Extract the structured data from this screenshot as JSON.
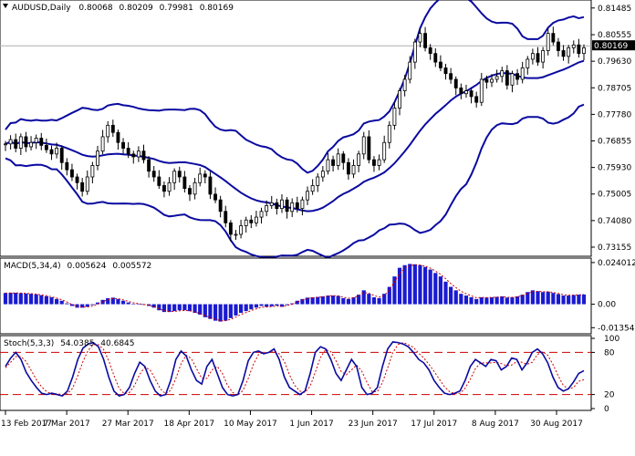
{
  "colors": {
    "background": "#ffffff",
    "frame": "#000000",
    "candle": "#000000",
    "bollinger": "#0a0aa0",
    "macd_hist": "#1a1ad0",
    "macd_signal": "#cc0000",
    "stoch_main": "#0a0aa0",
    "stoch_signal": "#cc0000",
    "level_line": "#cc0000",
    "current_price_line": "#b0b0b0"
  },
  "chart_data": [
    {
      "type": "candlestick",
      "symbol": "AUDUSD",
      "timeframe": "Daily",
      "ohlc_header": {
        "open": "0.80068",
        "high": "0.80209",
        "low": "0.79981",
        "close": "0.80169"
      },
      "title": "AUDUSD,Daily",
      "current_price": 0.80169,
      "current_price_label": "0.80169",
      "ylim": [
        0.729,
        0.817
      ],
      "y_tick_labels": [
        "0.81485",
        "0.80555",
        "0.79630",
        "0.78705",
        "0.77780",
        "0.76855",
        "0.75930",
        "0.75005",
        "0.74080",
        "0.73155"
      ],
      "x_tick_labels": [
        "13 Feb 2017",
        "7 Mar 2017",
        "27 Mar 2017",
        "18 Apr 2017",
        "10 May 2017",
        "1 Jun 2017",
        "23 Jun 2017",
        "17 Jul 2017",
        "8 Aug 2017",
        "30 Aug 2017"
      ],
      "overlay": "Bollinger Bands",
      "price_path": [
        0.7675,
        0.769,
        0.766,
        0.77,
        0.7665,
        0.768,
        0.7695,
        0.767,
        0.7655,
        0.764,
        0.766,
        0.761,
        0.7585,
        0.756,
        0.754,
        0.751,
        0.756,
        0.76,
        0.765,
        0.77,
        0.774,
        0.7715,
        0.768,
        0.766,
        0.764,
        0.763,
        0.765,
        0.762,
        0.758,
        0.756,
        0.753,
        0.751,
        0.754,
        0.758,
        0.756,
        0.752,
        0.75,
        0.754,
        0.757,
        0.756,
        0.75,
        0.748,
        0.744,
        0.74,
        0.736,
        0.736,
        0.739,
        0.741,
        0.74,
        0.742,
        0.744,
        0.746,
        0.747,
        0.745,
        0.748,
        0.744,
        0.747,
        0.745,
        0.748,
        0.751,
        0.753,
        0.756,
        0.758,
        0.762,
        0.76,
        0.764,
        0.761,
        0.757,
        0.76,
        0.764,
        0.77,
        0.762,
        0.76,
        0.762,
        0.768,
        0.774,
        0.78,
        0.786,
        0.79,
        0.796,
        0.803,
        0.806,
        0.801,
        0.799,
        0.796,
        0.794,
        0.792,
        0.79,
        0.787,
        0.785,
        0.786,
        0.784,
        0.782,
        0.79,
        0.789,
        0.79,
        0.791,
        0.793,
        0.788,
        0.792,
        0.79,
        0.794,
        0.797,
        0.799,
        0.796,
        0.8,
        0.806,
        0.803,
        0.8,
        0.798,
        0.801,
        0.802,
        0.799,
        0.801
      ],
      "candle_range": 0.005
    },
    {
      "type": "bar",
      "indicator": "MACD(5,34,4)",
      "header_values": [
        "0.005624",
        "0.005572"
      ],
      "ylim": [
        -0.016,
        0.025
      ],
      "y_tick_labels": [
        "0.024012",
        "0.00",
        "-0.013545"
      ],
      "y_tick_values": [
        0.024012,
        0.0,
        -0.013545
      ],
      "series": [
        {
          "values": [
            0.0065,
            0.0066,
            0.0066,
            0.0064,
            0.0062,
            0.006,
            0.0057,
            0.0052,
            0.0046,
            0.004,
            0.003,
            0.002,
            0.0005,
            -0.001,
            -0.002,
            -0.002,
            -0.0015,
            -0.0005,
            0.001,
            0.0025,
            0.0035,
            0.0038,
            0.003,
            0.002,
            0.001,
            0.0003,
            0.0,
            -0.0004,
            -0.001,
            -0.002,
            -0.0035,
            -0.0045,
            -0.0045,
            -0.004,
            -0.0035,
            -0.0035,
            -0.004,
            -0.005,
            -0.006,
            -0.0075,
            -0.0085,
            -0.0095,
            -0.01,
            -0.0095,
            -0.008,
            -0.0065,
            -0.005,
            -0.004,
            -0.003,
            -0.002,
            -0.001,
            -0.0015,
            -0.0012,
            -0.0008,
            -0.0015,
            -0.0005,
            0.0005,
            0.002,
            0.003,
            0.0038,
            0.004,
            0.0042,
            0.0045,
            0.005,
            0.005,
            0.0048,
            0.0035,
            0.003,
            0.004,
            0.0055,
            0.008,
            0.006,
            0.004,
            0.0035,
            0.006,
            0.01,
            0.016,
            0.021,
            0.0225,
            0.0232,
            0.023,
            0.0225,
            0.0215,
            0.02,
            0.018,
            0.016,
            0.013,
            0.01,
            0.008,
            0.006,
            0.005,
            0.004,
            0.003,
            0.004,
            0.0038,
            0.004,
            0.0042,
            0.0045,
            0.0038,
            0.004,
            0.0045,
            0.0055,
            0.007,
            0.008,
            0.0075,
            0.007,
            0.0072,
            0.0065,
            0.0058,
            0.005,
            0.005,
            0.0053,
            0.0055,
            0.0056
          ]
        },
        {
          "values": [
            0.0064,
            0.0065,
            0.0065,
            0.0064,
            0.0063,
            0.0061,
            0.0058,
            0.0054,
            0.0049,
            0.0043,
            0.0035,
            0.0026,
            0.0013,
            -0.0001,
            -0.0012,
            -0.0016,
            -0.0016,
            -0.0011,
            0.0,
            0.0014,
            0.0026,
            0.0033,
            0.0032,
            0.0025,
            0.0016,
            0.0008,
            0.0003,
            -0.0001,
            -0.0006,
            -0.0014,
            -0.0026,
            -0.0037,
            -0.0042,
            -0.0041,
            -0.0038,
            -0.0036,
            -0.0038,
            -0.0045,
            -0.0054,
            -0.0066,
            -0.0077,
            -0.0087,
            -0.0095,
            -0.0095,
            -0.0087,
            -0.0074,
            -0.0059,
            -0.0048,
            -0.0037,
            -0.0027,
            -0.0017,
            -0.0016,
            -0.0014,
            -0.001,
            -0.0013,
            -0.0008,
            0.0,
            0.0013,
            0.0024,
            0.0033,
            0.0037,
            0.004,
            0.0043,
            0.0047,
            0.0049,
            0.0048,
            0.004,
            0.0034,
            0.0038,
            0.0048,
            0.0067,
            0.0063,
            0.005,
            0.0041,
            0.0052,
            0.0081,
            0.0128,
            0.0177,
            0.0207,
            0.0222,
            0.0227,
            0.0226,
            0.0219,
            0.0208,
            0.0191,
            0.0172,
            0.0147,
            0.0119,
            0.0096,
            0.0074,
            0.006,
            0.0048,
            0.0037,
            0.0039,
            0.0038,
            0.0039,
            0.0041,
            0.0044,
            0.004,
            0.004,
            0.0043,
            0.005,
            0.0062,
            0.0073,
            0.0074,
            0.0072,
            0.0072,
            0.0068,
            0.0062,
            0.0055,
            0.0052,
            0.0053,
            0.0054,
            0.0056
          ]
        }
      ]
    },
    {
      "type": "line",
      "indicator": "Stoch(5,3,3)",
      "header_values": [
        "54.0385",
        "40.6845"
      ],
      "ylim": [
        0,
        100
      ],
      "y_tick_labels": [
        "100",
        "80",
        "20",
        "0"
      ],
      "y_tick_values": [
        100,
        80,
        20,
        0
      ],
      "levels": [
        80,
        20
      ],
      "series": [
        {
          "values": [
            60,
            72,
            80,
            70,
            52,
            40,
            30,
            22,
            20,
            22,
            20,
            18,
            25,
            45,
            70,
            86,
            92,
            94,
            88,
            70,
            45,
            25,
            18,
            20,
            30,
            50,
            66,
            60,
            40,
            25,
            18,
            20,
            40,
            70,
            82,
            75,
            55,
            40,
            35,
            60,
            70,
            50,
            30,
            20,
            18,
            20,
            40,
            68,
            80,
            82,
            78,
            80,
            85,
            70,
            45,
            30,
            25,
            20,
            25,
            50,
            80,
            88,
            85,
            70,
            50,
            40,
            55,
            70,
            60,
            30,
            20,
            22,
            30,
            60,
            85,
            95,
            94,
            92,
            88,
            80,
            70,
            65,
            55,
            40,
            30,
            22,
            20,
            22,
            25,
            40,
            60,
            70,
            65,
            60,
            70,
            68,
            55,
            60,
            72,
            70,
            55,
            65,
            80,
            85,
            78,
            65,
            45,
            30,
            25,
            28,
            38,
            50,
            54
          ]
        },
        {
          "values": [
            58,
            66,
            74,
            74,
            67,
            54,
            41,
            31,
            24,
            21,
            21,
            20,
            21,
            29,
            47,
            67,
            83,
            91,
            91,
            84,
            68,
            47,
            29,
            21,
            23,
            33,
            49,
            59,
            55,
            42,
            28,
            21,
            26,
            43,
            64,
            76,
            71,
            57,
            43,
            43,
            55,
            60,
            50,
            33,
            23,
            19,
            26,
            43,
            63,
            77,
            80,
            80,
            81,
            78,
            67,
            48,
            33,
            25,
            23,
            32,
            52,
            73,
            84,
            81,
            68,
            53,
            48,
            55,
            62,
            53,
            37,
            24,
            24,
            37,
            58,
            80,
            91,
            94,
            91,
            87,
            79,
            72,
            63,
            53,
            42,
            31,
            24,
            21,
            22,
            29,
            42,
            57,
            65,
            65,
            65,
            66,
            64,
            61,
            62,
            67,
            66,
            63,
            66,
            77,
            81,
            76,
            63,
            47,
            33,
            28,
            30,
            39,
            41
          ]
        }
      ]
    }
  ]
}
